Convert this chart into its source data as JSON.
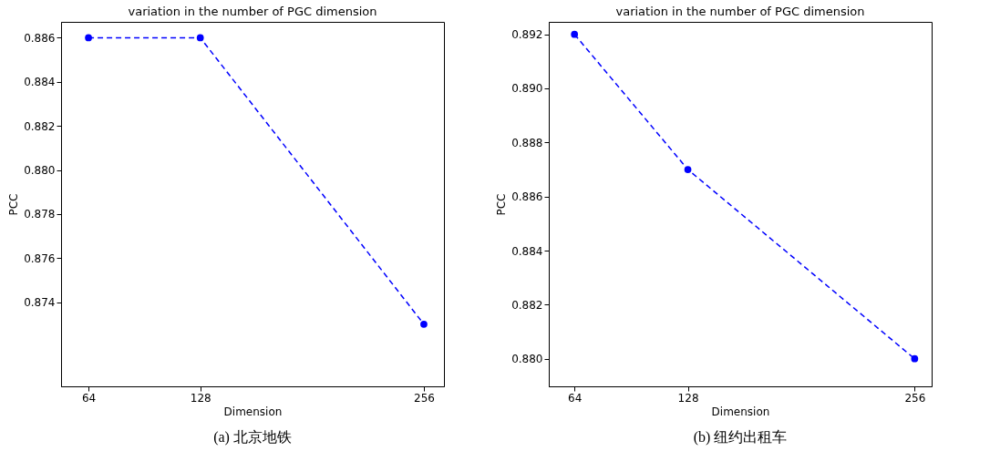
{
  "chart_data": [
    {
      "type": "line",
      "title": "variation in the number of PGC dimension",
      "xlabel": "Dimension",
      "ylabel": "PCC",
      "x": [
        64,
        128,
        256
      ],
      "series": [
        {
          "color": "#0000ff",
          "values": [
            0.886,
            0.886,
            0.873
          ]
        }
      ],
      "xlim": [
        48.3,
        267.5
      ],
      "ylim": [
        0.87018,
        0.88672
      ],
      "xticks": [
        64,
        128,
        256
      ],
      "yticks": [
        {
          "value": 0.874,
          "label": "0.874"
        },
        {
          "value": 0.876,
          "label": "0.876"
        },
        {
          "value": 0.878,
          "label": "0.878"
        },
        {
          "value": 0.88,
          "label": "0.880"
        },
        {
          "value": 0.882,
          "label": "0.882"
        },
        {
          "value": 0.884,
          "label": "0.884"
        },
        {
          "value": 0.886,
          "label": "0.886"
        }
      ],
      "marker": "circle",
      "line_style": "dashed",
      "annotations": [
        "(a) 北京地铁"
      ]
    },
    {
      "type": "line",
      "title": "variation in the number of PGC dimension",
      "xlabel": "Dimension",
      "ylabel": "PCC",
      "x": [
        64,
        128,
        256
      ],
      "series": [
        {
          "color": "#0000ff",
          "values": [
            0.892,
            0.887,
            0.88
          ]
        }
      ],
      "xlim": [
        49.5,
        265.6
      ],
      "ylim": [
        0.87898,
        0.89246
      ],
      "xticks": [
        64,
        128,
        256
      ],
      "yticks": [
        {
          "value": 0.88,
          "label": "0.880"
        },
        {
          "value": 0.882,
          "label": "0.882"
        },
        {
          "value": 0.884,
          "label": "0.884"
        },
        {
          "value": 0.886,
          "label": "0.886"
        },
        {
          "value": 0.888,
          "label": "0.888"
        },
        {
          "value": 0.89,
          "label": "0.890"
        },
        {
          "value": 0.892,
          "label": "0.892"
        }
      ],
      "marker": "circle",
      "line_style": "dashed",
      "annotations": [
        "(b) 纽约出租车"
      ]
    }
  ]
}
